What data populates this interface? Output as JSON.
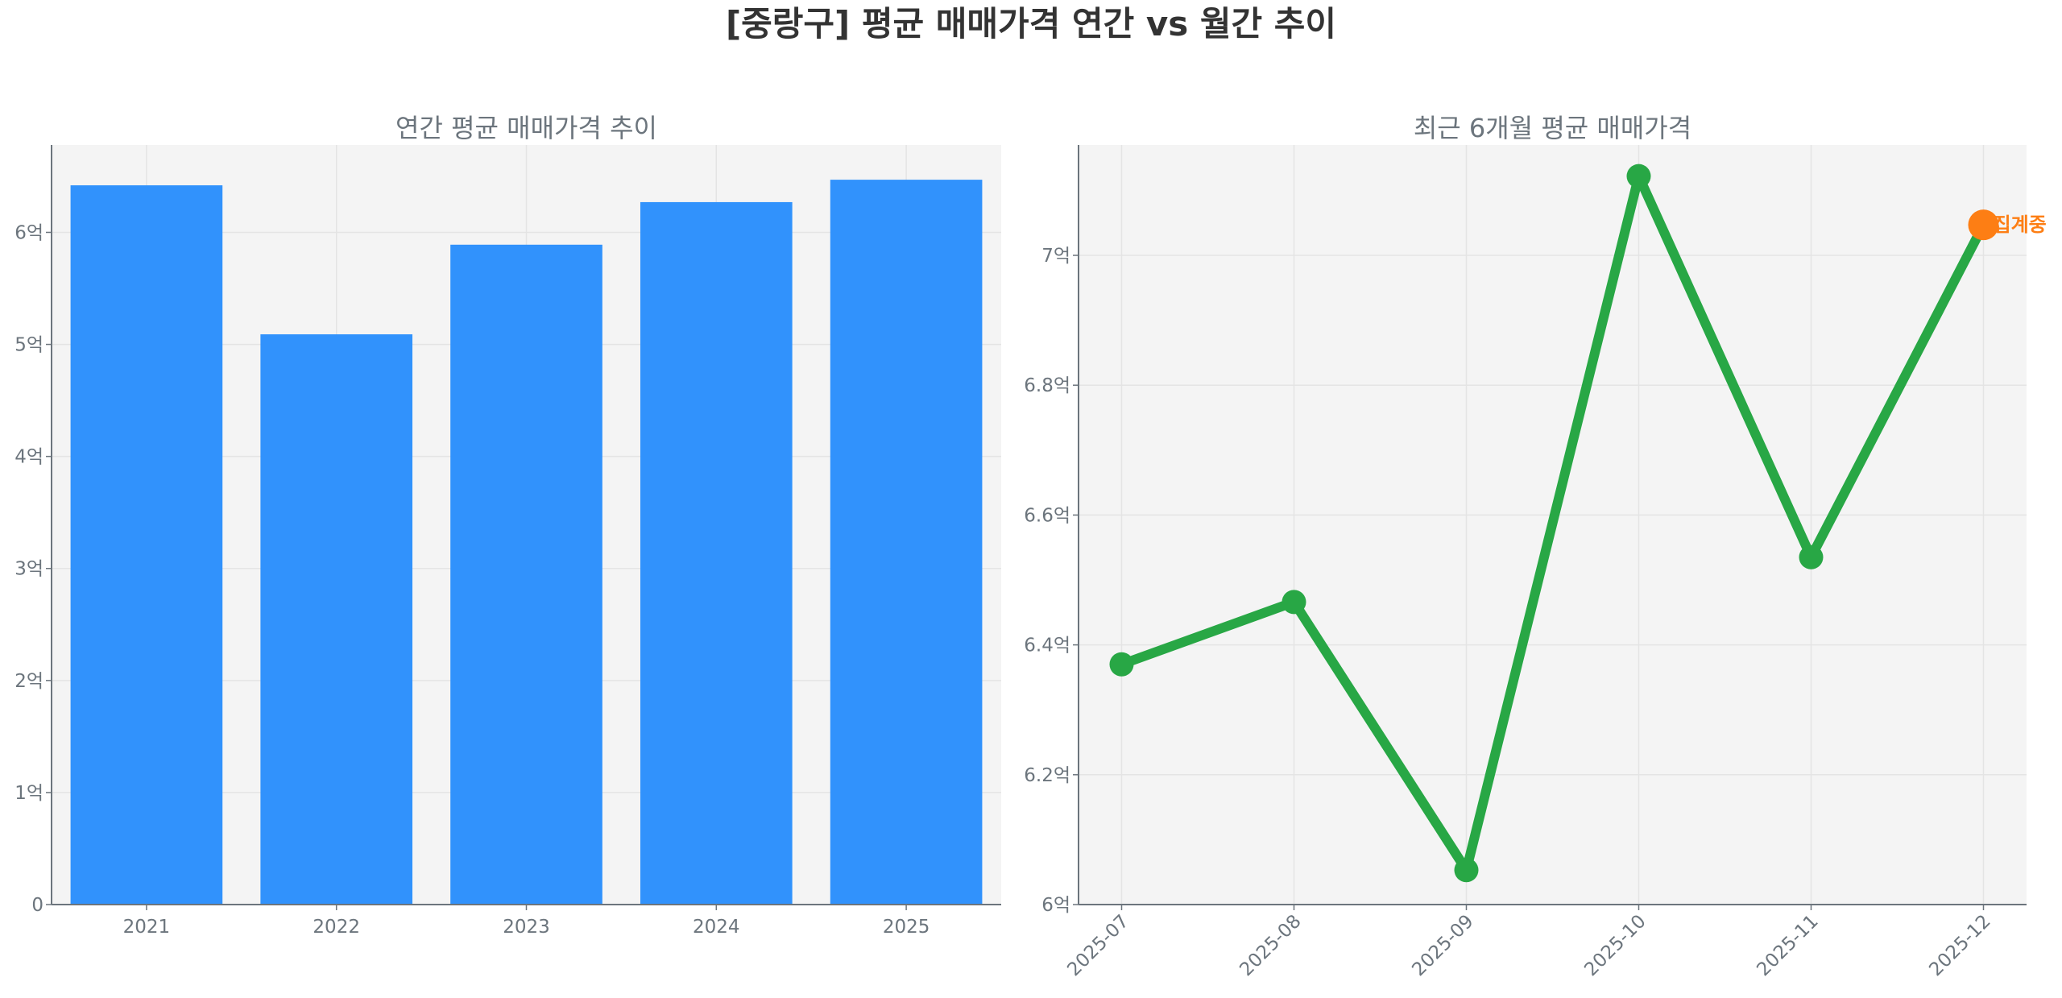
{
  "title": "[중랑구] 평균 매매가격 연간 vs 월간 추이",
  "chart_data": [
    {
      "type": "bar",
      "title": "연간 평균 매매가격 추이",
      "categories": [
        "2021",
        "2022",
        "2023",
        "2024",
        "2025"
      ],
      "values": [
        6.42,
        5.09,
        5.89,
        6.27,
        6.47
      ],
      "unit": "억",
      "ylim": [
        0,
        6.78
      ],
      "yticks": [
        0,
        1,
        2,
        3,
        4,
        5,
        6
      ],
      "ytick_labels": [
        "0",
        "1억",
        "2억",
        "3억",
        "4억",
        "5억",
        "6억"
      ],
      "grid": true,
      "color": "#3192fc"
    },
    {
      "type": "line",
      "title": "최근 6개월 평균 매매가격",
      "categories": [
        "2025-07",
        "2025-08",
        "2025-09",
        "2025-10",
        "2025-11",
        "2025-12"
      ],
      "values": [
        6.37,
        6.466,
        6.053,
        7.122,
        6.535,
        7.047
      ],
      "unit": "억",
      "ylim": [
        6.0,
        7.17
      ],
      "yticks": [
        6.0,
        6.2,
        6.4,
        6.6,
        6.8,
        7.0
      ],
      "ytick_labels": [
        "6억",
        "6.2억",
        "6.4억",
        "6.6억",
        "6.8억",
        "7억"
      ],
      "grid": true,
      "color": "#28a745",
      "highlight": {
        "index": 5,
        "label": "집계중",
        "color": "#fd7e14"
      }
    }
  ]
}
